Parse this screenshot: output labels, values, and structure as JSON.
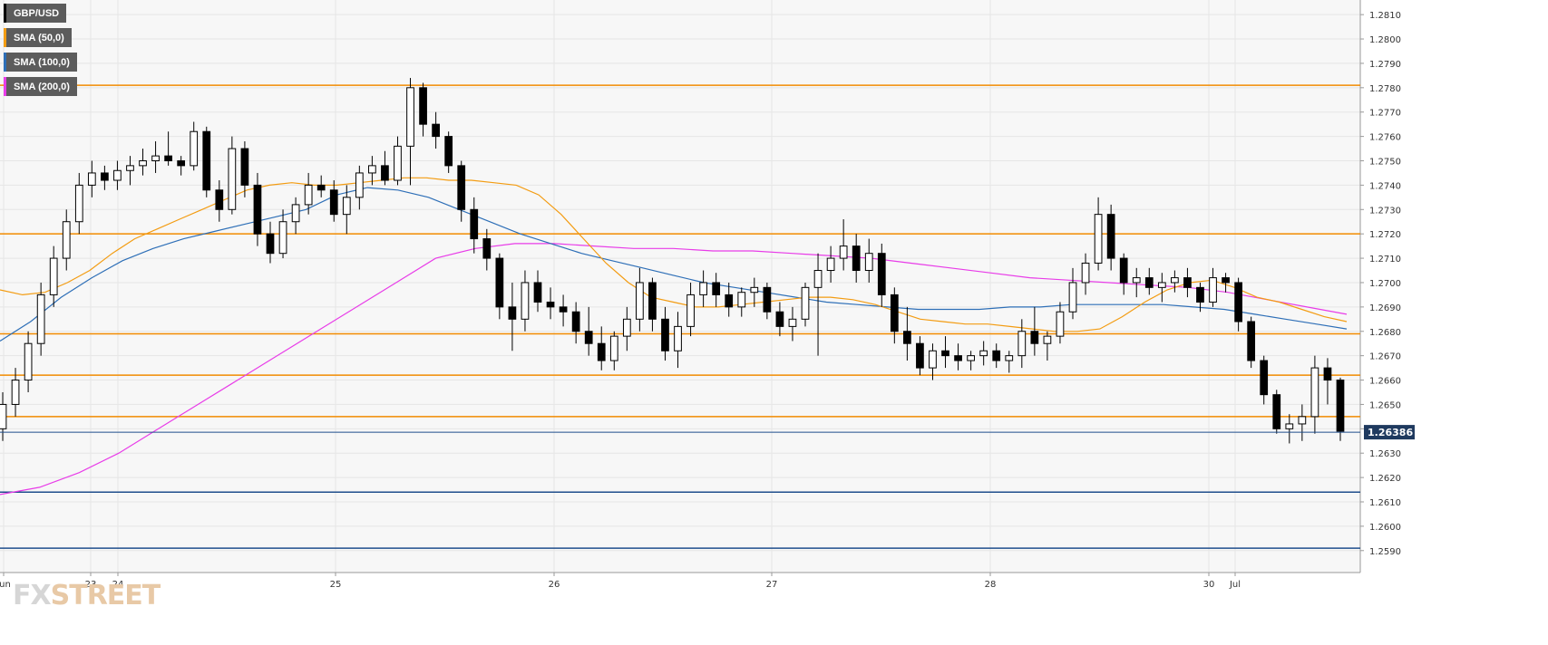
{
  "legend": [
    {
      "label": "GBP/USD",
      "color": "#000000"
    },
    {
      "label": "SMA (50,0)",
      "color": "#f39c12"
    },
    {
      "label": "SMA (100,0)",
      "color": "#2e6fb7"
    },
    {
      "label": "SMA (200,0)",
      "color": "#e83ce8"
    }
  ],
  "watermark": {
    "part1": "FX",
    "part2": "STREET"
  },
  "price_tag": "1.26386",
  "colors": {
    "orange_level": "#f28b00",
    "blue_level": "#1f4e8c",
    "sma50": "#f39c12",
    "sma100": "#2e6fb7",
    "sma200": "#e83ce8",
    "grid": "#e6e6e6",
    "plot_bg": "#f7f7f7",
    "candle": "#000000"
  },
  "chart_data": {
    "type": "candlestick",
    "symbol": "GBP/USD",
    "ylim": [
      1.2581,
      1.2816
    ],
    "y_ticks": [
      "1.2590",
      "1.2600",
      "1.2610",
      "1.2620",
      "1.2630",
      "1.2640",
      "1.2650",
      "1.2660",
      "1.2670",
      "1.2680",
      "1.2690",
      "1.2700",
      "1.2710",
      "1.2720",
      "1.2730",
      "1.2740",
      "1.2750",
      "1.2760",
      "1.2770",
      "1.2780",
      "1.2790",
      "1.2800",
      "1.2810"
    ],
    "x_labels": [
      "Jun",
      "23",
      "24",
      "25",
      "26",
      "27",
      "28",
      "30",
      "Jul"
    ],
    "orange_levels": [
      1.2781,
      1.272,
      1.2679,
      1.2662,
      1.2645
    ],
    "blue_levels": [
      1.2614,
      1.2591
    ],
    "current_price": 1.26386,
    "grid": true,
    "candles": [
      [
        1.264,
        1.2655,
        1.2635,
        1.265
      ],
      [
        1.265,
        1.2665,
        1.2645,
        1.266
      ],
      [
        1.266,
        1.268,
        1.2655,
        1.2675
      ],
      [
        1.2675,
        1.27,
        1.267,
        1.2695
      ],
      [
        1.2695,
        1.2715,
        1.269,
        1.271
      ],
      [
        1.271,
        1.273,
        1.2705,
        1.2725
      ],
      [
        1.2725,
        1.2745,
        1.272,
        1.274
      ],
      [
        1.274,
        1.275,
        1.2735,
        1.2745
      ],
      [
        1.2745,
        1.2748,
        1.2738,
        1.2742
      ],
      [
        1.2742,
        1.275,
        1.2738,
        1.2746
      ],
      [
        1.2746,
        1.2752,
        1.274,
        1.2748
      ],
      [
        1.2748,
        1.2755,
        1.2744,
        1.275
      ],
      [
        1.275,
        1.2758,
        1.2745,
        1.2752
      ],
      [
        1.2752,
        1.2762,
        1.2748,
        1.275
      ],
      [
        1.275,
        1.2752,
        1.2744,
        1.2748
      ],
      [
        1.2748,
        1.2766,
        1.2746,
        1.2762
      ],
      [
        1.2762,
        1.2764,
        1.2735,
        1.2738
      ],
      [
        1.2738,
        1.2742,
        1.2725,
        1.273
      ],
      [
        1.273,
        1.276,
        1.2728,
        1.2755
      ],
      [
        1.2755,
        1.2758,
        1.2735,
        1.274
      ],
      [
        1.274,
        1.2745,
        1.2715,
        1.272
      ],
      [
        1.272,
        1.2725,
        1.2708,
        1.2712
      ],
      [
        1.2712,
        1.273,
        1.271,
        1.2725
      ],
      [
        1.2725,
        1.2735,
        1.272,
        1.2732
      ],
      [
        1.2732,
        1.2745,
        1.2728,
        1.274
      ],
      [
        1.274,
        1.2744,
        1.2735,
        1.2738
      ],
      [
        1.2738,
        1.2742,
        1.2725,
        1.2728
      ],
      [
        1.2728,
        1.274,
        1.272,
        1.2735
      ],
      [
        1.2735,
        1.2748,
        1.273,
        1.2745
      ],
      [
        1.2745,
        1.2752,
        1.274,
        1.2748
      ],
      [
        1.2748,
        1.2754,
        1.274,
        1.2742
      ],
      [
        1.2742,
        1.276,
        1.274,
        1.2756
      ],
      [
        1.2756,
        1.2784,
        1.274,
        1.278
      ],
      [
        1.278,
        1.2782,
        1.276,
        1.2765
      ],
      [
        1.2765,
        1.277,
        1.2755,
        1.276
      ],
      [
        1.276,
        1.2762,
        1.2745,
        1.2748
      ],
      [
        1.2748,
        1.275,
        1.2725,
        1.273
      ],
      [
        1.273,
        1.2735,
        1.2712,
        1.2718
      ],
      [
        1.2718,
        1.2722,
        1.2705,
        1.271
      ],
      [
        1.271,
        1.2712,
        1.2685,
        1.269
      ],
      [
        1.269,
        1.27,
        1.2672,
        1.2685
      ],
      [
        1.2685,
        1.2705,
        1.268,
        1.27
      ],
      [
        1.27,
        1.2705,
        1.2688,
        1.2692
      ],
      [
        1.2692,
        1.2698,
        1.2685,
        1.269
      ],
      [
        1.269,
        1.2695,
        1.2682,
        1.2688
      ],
      [
        1.2688,
        1.2692,
        1.2675,
        1.268
      ],
      [
        1.268,
        1.269,
        1.267,
        1.2675
      ],
      [
        1.2675,
        1.2682,
        1.2664,
        1.2668
      ],
      [
        1.2668,
        1.268,
        1.2664,
        1.2678
      ],
      [
        1.2678,
        1.269,
        1.2672,
        1.2685
      ],
      [
        1.2685,
        1.2706,
        1.268,
        1.27
      ],
      [
        1.27,
        1.2702,
        1.268,
        1.2685
      ],
      [
        1.2685,
        1.269,
        1.2668,
        1.2672
      ],
      [
        1.2672,
        1.2688,
        1.2665,
        1.2682
      ],
      [
        1.2682,
        1.27,
        1.2678,
        1.2695
      ],
      [
        1.2695,
        1.2705,
        1.269,
        1.27
      ],
      [
        1.27,
        1.2704,
        1.269,
        1.2695
      ],
      [
        1.2695,
        1.27,
        1.2686,
        1.269
      ],
      [
        1.269,
        1.2698,
        1.2686,
        1.2696
      ],
      [
        1.2696,
        1.2702,
        1.269,
        1.2698
      ],
      [
        1.2698,
        1.27,
        1.2685,
        1.2688
      ],
      [
        1.2688,
        1.2692,
        1.2678,
        1.2682
      ],
      [
        1.2682,
        1.269,
        1.2676,
        1.2685
      ],
      [
        1.2685,
        1.27,
        1.2682,
        1.2698
      ],
      [
        1.2698,
        1.2712,
        1.267,
        1.2705
      ],
      [
        1.2705,
        1.2715,
        1.27,
        1.271
      ],
      [
        1.271,
        1.2726,
        1.2705,
        1.2715
      ],
      [
        1.2715,
        1.272,
        1.27,
        1.2705
      ],
      [
        1.2705,
        1.2718,
        1.27,
        1.2712
      ],
      [
        1.2712,
        1.2716,
        1.269,
        1.2695
      ],
      [
        1.2695,
        1.2698,
        1.2675,
        1.268
      ],
      [
        1.268,
        1.269,
        1.2668,
        1.2675
      ],
      [
        1.2675,
        1.2678,
        1.2662,
        1.2665
      ],
      [
        1.2665,
        1.2675,
        1.266,
        1.2672
      ],
      [
        1.2672,
        1.2678,
        1.2665,
        1.267
      ],
      [
        1.267,
        1.2675,
        1.2664,
        1.2668
      ],
      [
        1.2668,
        1.2672,
        1.2664,
        1.267
      ],
      [
        1.267,
        1.2676,
        1.2666,
        1.2672
      ],
      [
        1.2672,
        1.2675,
        1.2665,
        1.2668
      ],
      [
        1.2668,
        1.2672,
        1.2663,
        1.267
      ],
      [
        1.267,
        1.2685,
        1.2665,
        1.268
      ],
      [
        1.268,
        1.269,
        1.267,
        1.2675
      ],
      [
        1.2675,
        1.268,
        1.2668,
        1.2678
      ],
      [
        1.2678,
        1.2692,
        1.2675,
        1.2688
      ],
      [
        1.2688,
        1.2706,
        1.2685,
        1.27
      ],
      [
        1.27,
        1.2712,
        1.2695,
        1.2708
      ],
      [
        1.2708,
        1.2735,
        1.2705,
        1.2728
      ],
      [
        1.2728,
        1.2732,
        1.2705,
        1.271
      ],
      [
        1.271,
        1.2712,
        1.2695,
        1.27
      ],
      [
        1.27,
        1.2706,
        1.2694,
        1.2702
      ],
      [
        1.2702,
        1.2706,
        1.2695,
        1.2698
      ],
      [
        1.2698,
        1.2704,
        1.2692,
        1.27
      ],
      [
        1.27,
        1.2705,
        1.2696,
        1.2702
      ],
      [
        1.2702,
        1.2706,
        1.2694,
        1.2698
      ],
      [
        1.2698,
        1.27,
        1.2688,
        1.2692
      ],
      [
        1.2692,
        1.2706,
        1.269,
        1.2702
      ],
      [
        1.2702,
        1.2704,
        1.2696,
        1.27
      ],
      [
        1.27,
        1.2702,
        1.268,
        1.2684
      ],
      [
        1.2684,
        1.2686,
        1.2665,
        1.2668
      ],
      [
        1.2668,
        1.267,
        1.265,
        1.2654
      ],
      [
        1.2654,
        1.2656,
        1.2638,
        1.264
      ],
      [
        1.264,
        1.2646,
        1.2634,
        1.2642
      ],
      [
        1.2642,
        1.265,
        1.2635,
        1.2645
      ],
      [
        1.2645,
        1.267,
        1.2638,
        1.2665
      ],
      [
        1.2665,
        1.2669,
        1.265,
        1.266
      ],
      [
        1.266,
        1.2661,
        1.2635,
        1.2639
      ]
    ],
    "sma50": [
      1.2697,
      1.2695,
      1.2696,
      1.27,
      1.2705,
      1.2712,
      1.2718,
      1.2722,
      1.2726,
      1.273,
      1.2734,
      1.2738,
      1.274,
      1.2741,
      1.274,
      1.274,
      1.2741,
      1.2742,
      1.2743,
      1.2743,
      1.2742,
      1.2742,
      1.2741,
      1.274,
      1.2736,
      1.2728,
      1.2718,
      1.2708,
      1.27,
      1.2694,
      1.2692,
      1.269,
      1.269,
      1.2691,
      1.2692,
      1.2693,
      1.2694,
      1.2694,
      1.2693,
      1.2691,
      1.2688,
      1.2685,
      1.2684,
      1.2683,
      1.2683,
      1.2682,
      1.2681,
      1.268,
      1.268,
      1.2681,
      1.2686,
      1.2692,
      1.2697,
      1.27,
      1.2701,
      1.2698,
      1.2694,
      1.2692,
      1.2689,
      1.2686,
      1.2684
    ],
    "sma100": [
      1.2676,
      1.2684,
      1.2694,
      1.2702,
      1.2709,
      1.2714,
      1.2718,
      1.2721,
      1.2724,
      1.2727,
      1.273,
      1.2736,
      1.2739,
      1.2738,
      1.2735,
      1.273,
      1.2725,
      1.272,
      1.2716,
      1.2712,
      1.2709,
      1.2706,
      1.2703,
      1.27,
      1.2698,
      1.2696,
      1.2694,
      1.2692,
      1.2691,
      1.269,
      1.2689,
      1.2689,
      1.2689,
      1.269,
      1.269,
      1.2691,
      1.2691,
      1.2691,
      1.2691,
      1.269,
      1.2689,
      1.2687,
      1.2685,
      1.2683,
      1.2681
    ],
    "sma200": [
      1.2613,
      1.2616,
      1.2622,
      1.263,
      1.264,
      1.265,
      1.266,
      1.267,
      1.268,
      1.269,
      1.27,
      1.271,
      1.2714,
      1.2716,
      1.2716,
      1.2715,
      1.2714,
      1.2714,
      1.2713,
      1.2713,
      1.2712,
      1.2711,
      1.271,
      1.2708,
      1.2706,
      1.2704,
      1.2702,
      1.2701,
      1.27,
      1.2699,
      1.2698,
      1.2696,
      1.2693,
      1.269,
      1.2687
    ]
  }
}
